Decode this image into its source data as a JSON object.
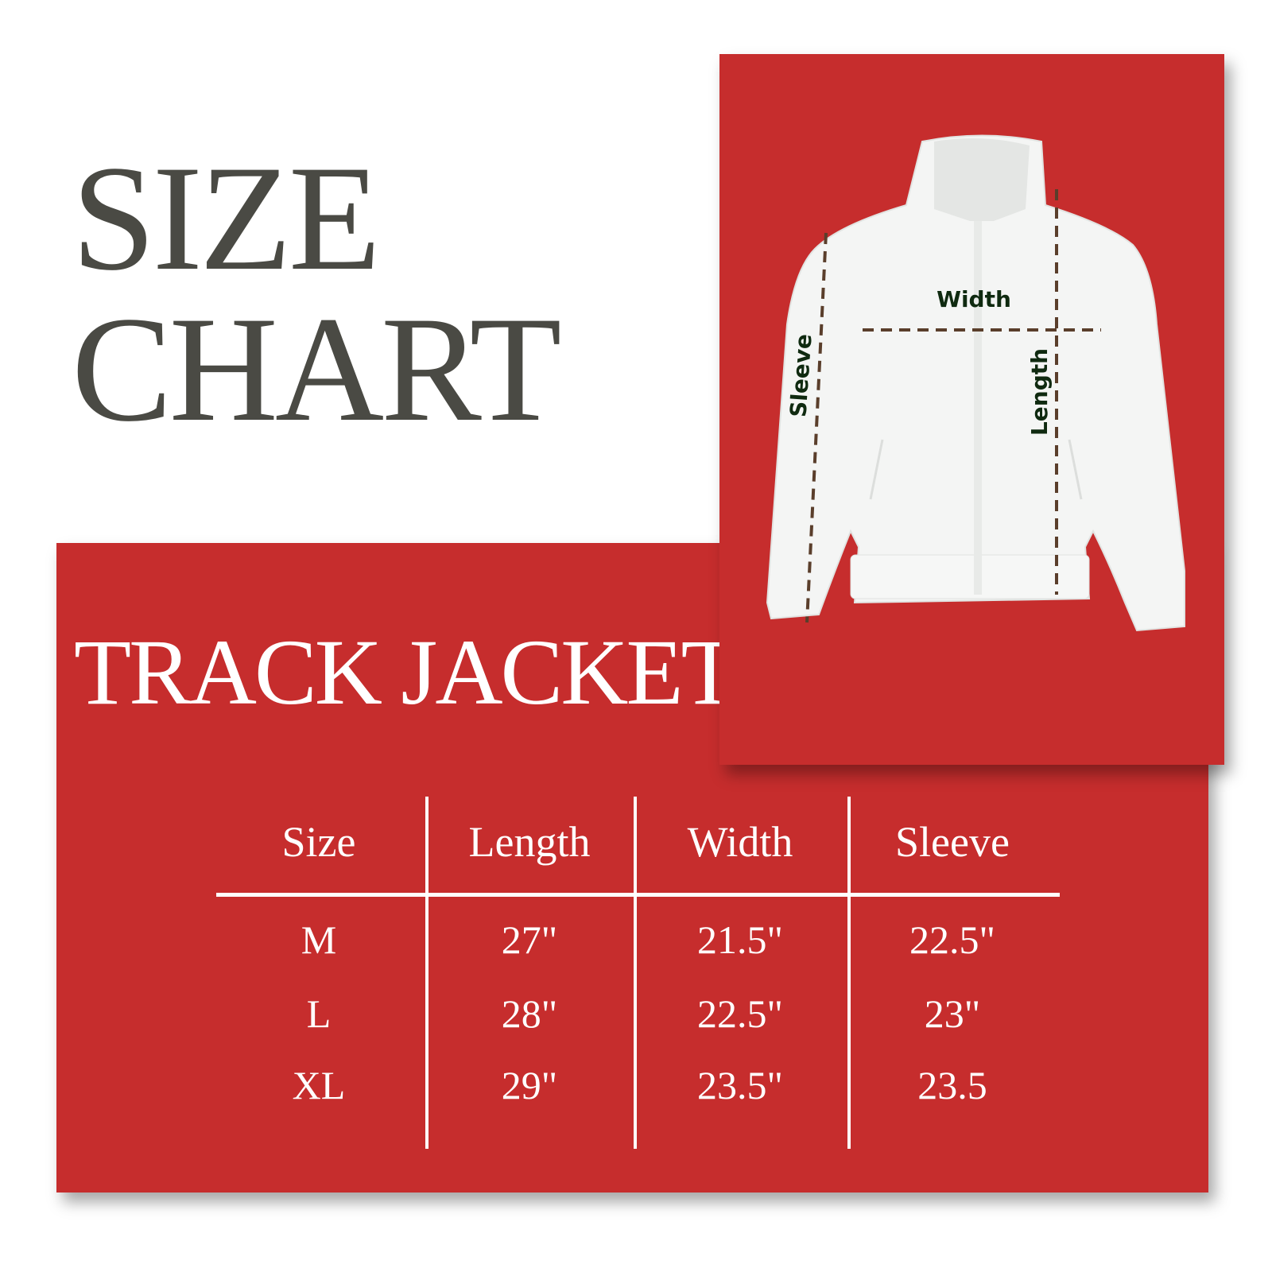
{
  "heading": {
    "line1": "SIZE",
    "line2": "CHART"
  },
  "product": "TRACK JACKET",
  "colors": {
    "card": "#c62d2d",
    "title": "#4a4a44",
    "measure_line": "#5a3e2b",
    "measure_label": "#0f2a10"
  },
  "diagram": {
    "labels": {
      "width": "Width",
      "length": "Length",
      "sleeve": "Sleeve"
    },
    "icon": "jacket-illustration"
  },
  "table": {
    "headers": [
      "Size",
      "Length",
      "Width",
      "Sleeve"
    ],
    "rows": [
      [
        "M",
        "27\"",
        "21.5\"",
        "22.5\""
      ],
      [
        "L",
        "28\"",
        "22.5\"",
        "23\""
      ],
      [
        "XL",
        "29\"",
        "23.5\"",
        "23.5"
      ]
    ]
  }
}
